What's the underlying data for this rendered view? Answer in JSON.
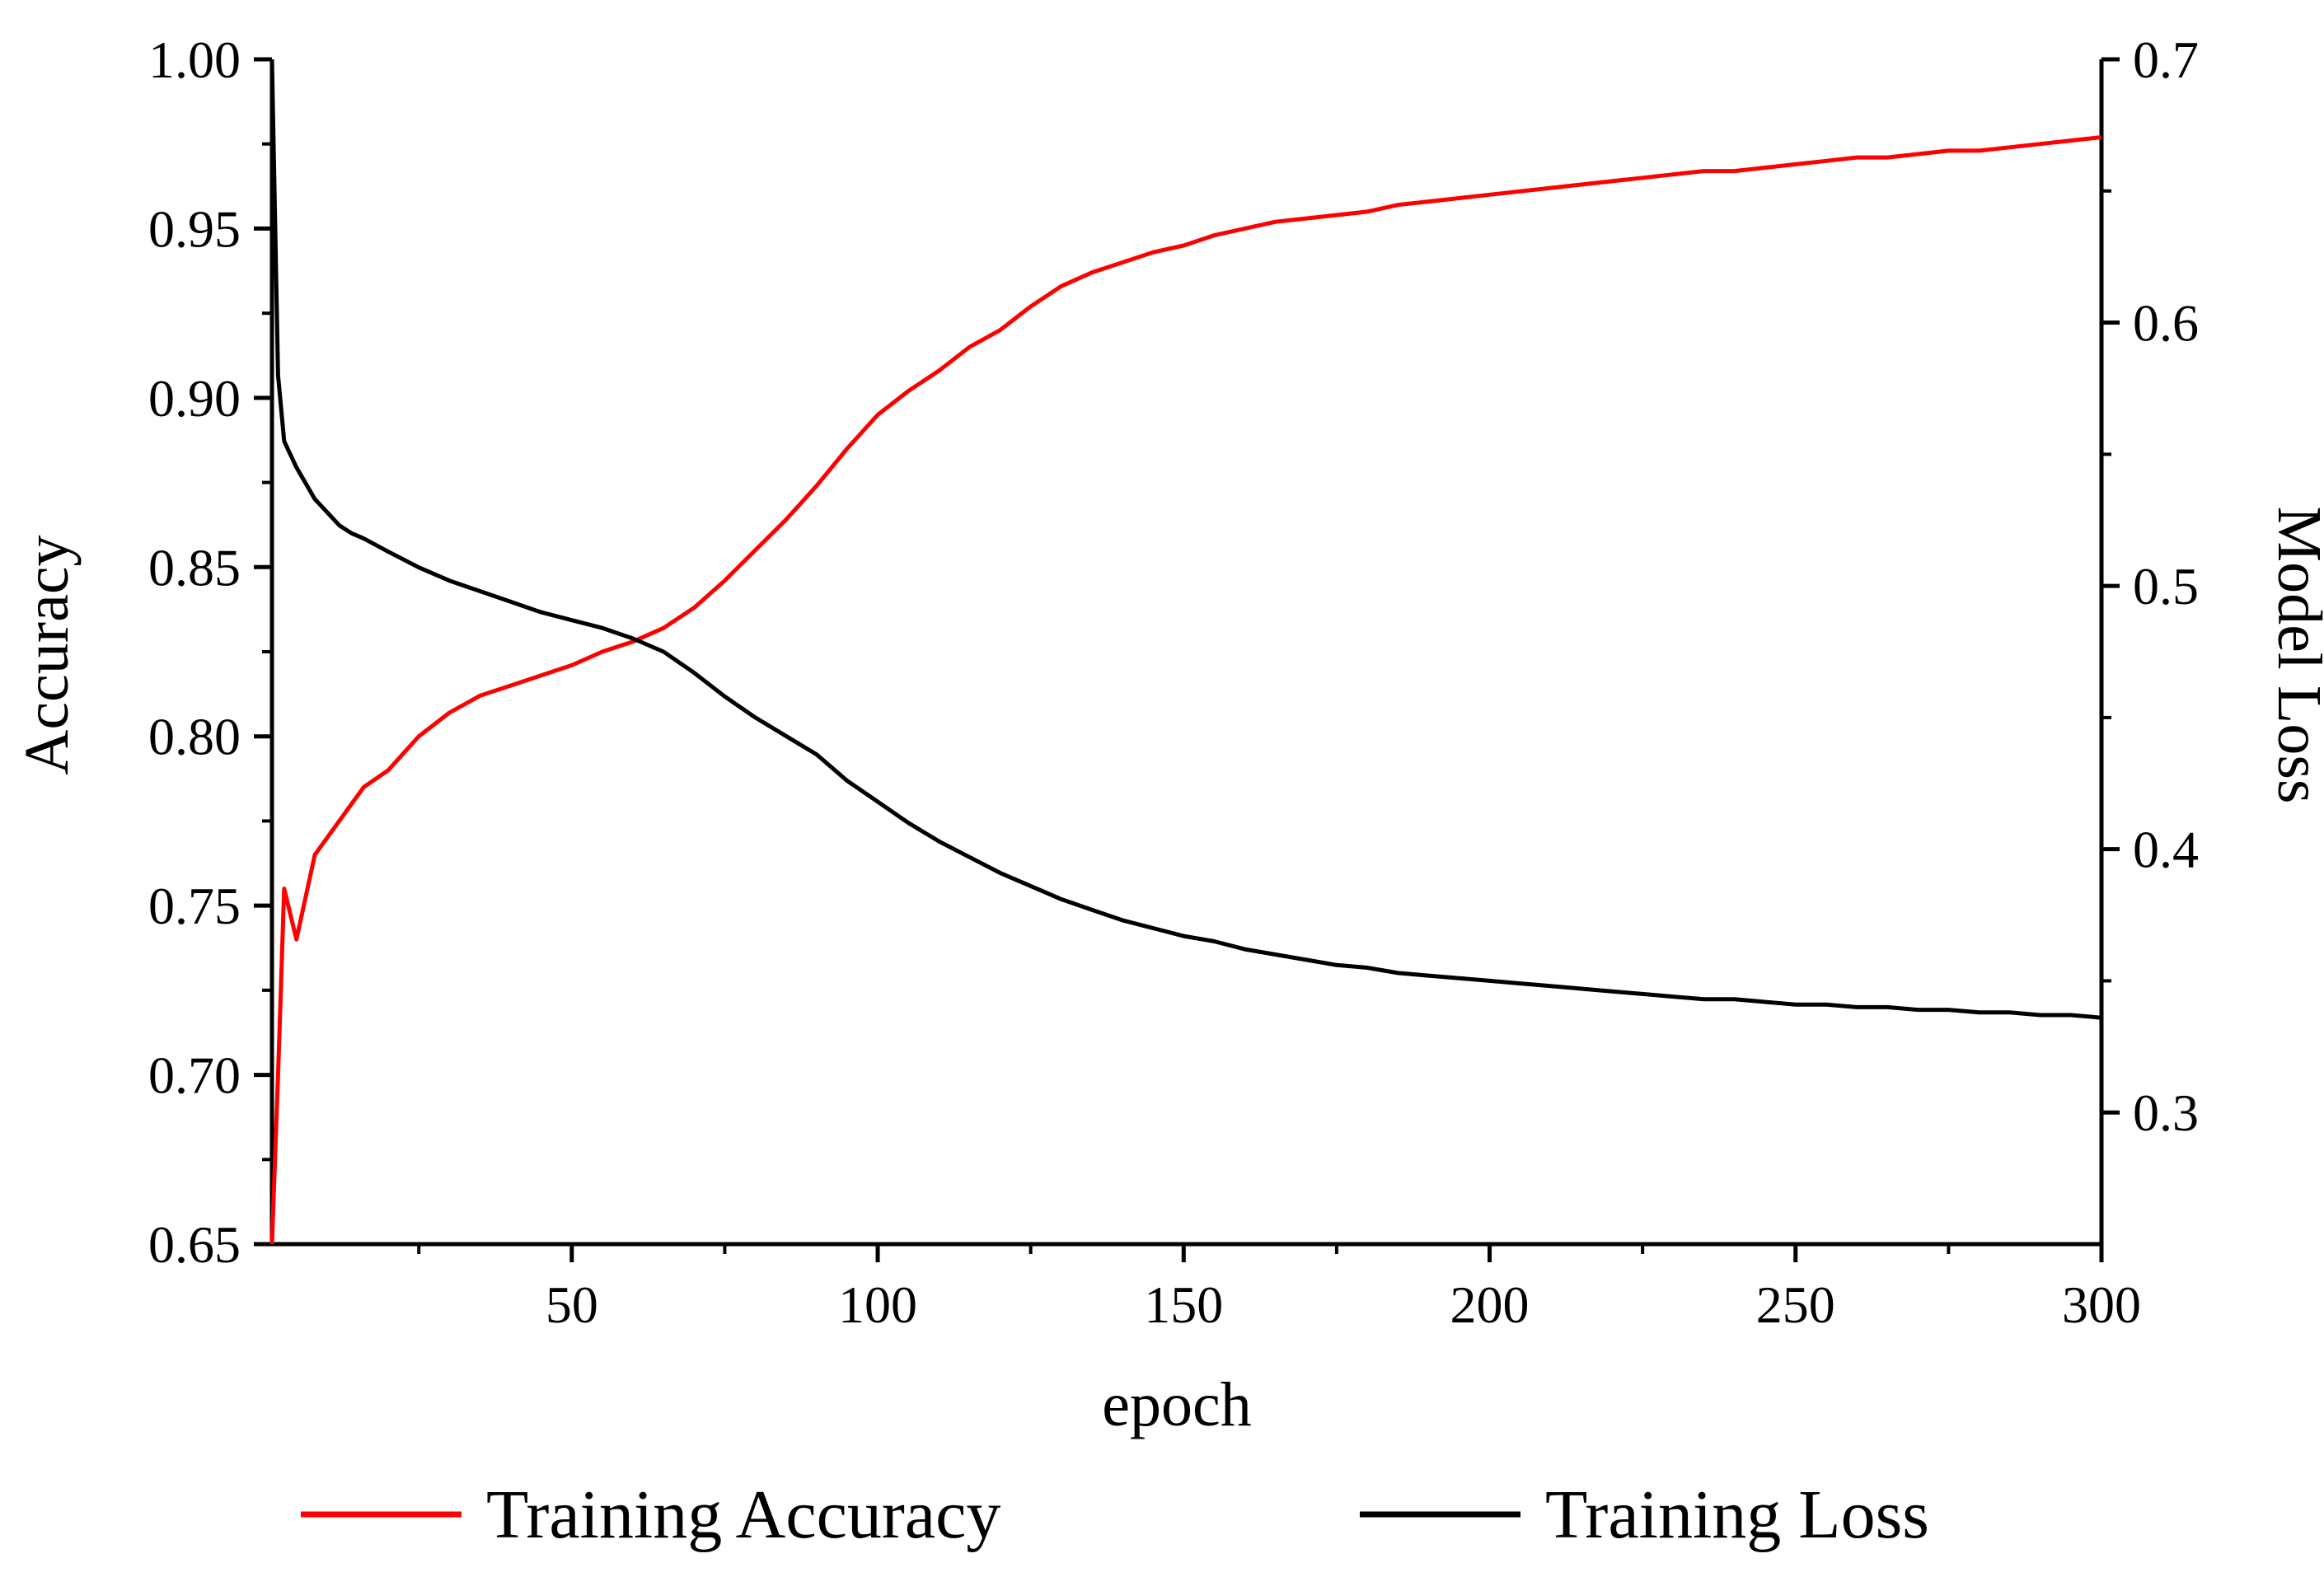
{
  "chart_data": {
    "type": "line",
    "title": "",
    "xlabel": "epoch",
    "ylabel_left": "Accuracy",
    "ylabel_right": "Model Loss",
    "xlim": [
      1,
      300
    ],
    "ylim_left": [
      0.65,
      1.0
    ],
    "ylim_right": [
      0.25,
      0.7
    ],
    "x_ticks": [
      50,
      100,
      150,
      200,
      250,
      300
    ],
    "x_tick_labels": [
      "50",
      "100",
      "150",
      "200",
      "250",
      "300"
    ],
    "y_left_ticks": [
      0.65,
      0.7,
      0.75,
      0.8,
      0.85,
      0.9,
      0.95,
      1.0
    ],
    "y_left_tick_labels": [
      "0.65",
      "0.70",
      "0.75",
      "0.80",
      "0.85",
      "0.90",
      "0.95",
      "1.00"
    ],
    "y_right_ticks": [
      0.3,
      0.4,
      0.5,
      0.6,
      0.7
    ],
    "y_right_tick_labels": [
      "0.3",
      "0.4",
      "0.5",
      "0.6",
      "0.7"
    ],
    "legend_position": "bottom",
    "series": [
      {
        "name": "Training Accuracy",
        "axis": "left",
        "color": "#ff0000",
        "x": [
          1,
          2,
          3,
          5,
          8,
          10,
          12,
          14,
          16,
          20,
          25,
          30,
          35,
          40,
          45,
          50,
          55,
          60,
          65,
          70,
          75,
          80,
          85,
          90,
          95,
          100,
          105,
          110,
          115,
          120,
          125,
          130,
          135,
          140,
          145,
          150,
          155,
          160,
          165,
          170,
          175,
          180,
          185,
          190,
          195,
          200,
          205,
          210,
          215,
          220,
          225,
          230,
          235,
          240,
          245,
          250,
          255,
          260,
          265,
          270,
          275,
          280,
          285,
          290,
          295,
          300
        ],
        "values": [
          0.65,
          0.7,
          0.755,
          0.74,
          0.765,
          0.77,
          0.775,
          0.78,
          0.785,
          0.79,
          0.8,
          0.807,
          0.812,
          0.815,
          0.818,
          0.821,
          0.825,
          0.828,
          0.832,
          0.838,
          0.846,
          0.855,
          0.864,
          0.874,
          0.885,
          0.895,
          0.902,
          0.908,
          0.915,
          0.92,
          0.927,
          0.933,
          0.937,
          0.94,
          0.943,
          0.945,
          0.948,
          0.95,
          0.952,
          0.953,
          0.954,
          0.955,
          0.957,
          0.958,
          0.959,
          0.96,
          0.961,
          0.962,
          0.963,
          0.964,
          0.965,
          0.966,
          0.967,
          0.967,
          0.968,
          0.969,
          0.97,
          0.971,
          0.971,
          0.972,
          0.973,
          0.973,
          0.974,
          0.975,
          0.976,
          0.977
        ]
      },
      {
        "name": "Training Loss",
        "axis": "right",
        "color": "#000000",
        "x": [
          1,
          2,
          3,
          5,
          8,
          10,
          12,
          14,
          16,
          20,
          25,
          30,
          35,
          40,
          45,
          50,
          55,
          60,
          65,
          70,
          75,
          80,
          85,
          90,
          95,
          100,
          105,
          110,
          115,
          120,
          125,
          130,
          135,
          140,
          145,
          150,
          155,
          160,
          165,
          170,
          175,
          180,
          185,
          190,
          195,
          200,
          205,
          210,
          215,
          220,
          225,
          230,
          235,
          240,
          245,
          250,
          255,
          260,
          265,
          270,
          275,
          280,
          285,
          290,
          295,
          300
        ],
        "values": [
          0.7,
          0.58,
          0.555,
          0.545,
          0.533,
          0.528,
          0.523,
          0.52,
          0.518,
          0.513,
          0.507,
          0.502,
          0.498,
          0.494,
          0.49,
          0.487,
          0.484,
          0.48,
          0.475,
          0.467,
          0.458,
          0.45,
          0.443,
          0.436,
          0.426,
          0.418,
          0.41,
          0.403,
          0.397,
          0.391,
          0.386,
          0.381,
          0.377,
          0.373,
          0.37,
          0.367,
          0.365,
          0.362,
          0.36,
          0.358,
          0.356,
          0.355,
          0.353,
          0.352,
          0.351,
          0.35,
          0.349,
          0.348,
          0.347,
          0.346,
          0.345,
          0.344,
          0.343,
          0.343,
          0.342,
          0.341,
          0.341,
          0.34,
          0.34,
          0.339,
          0.339,
          0.338,
          0.338,
          0.337,
          0.337,
          0.336
        ]
      }
    ]
  }
}
